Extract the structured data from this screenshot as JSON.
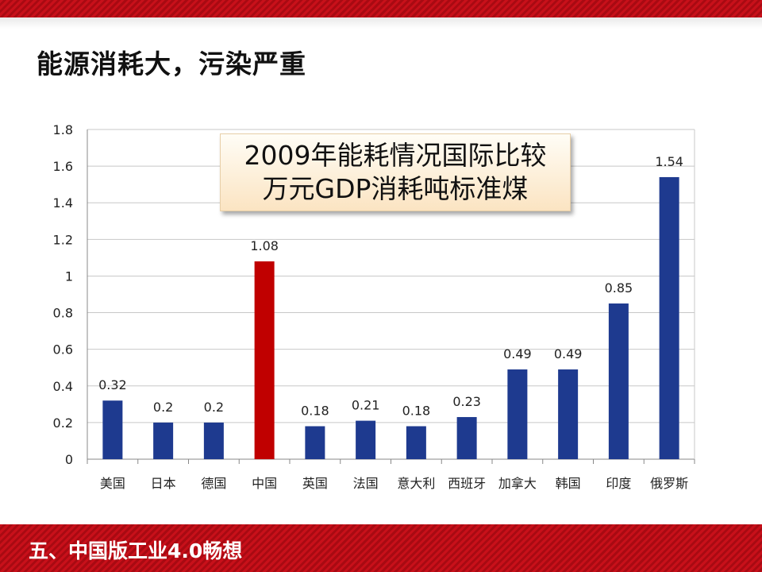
{
  "slide": {
    "title": "能源消耗大，污染严重",
    "footer": "五、中国版工业4.0畅想"
  },
  "colors": {
    "bar_default": "#1e3a8f",
    "bar_highlight": "#c00000",
    "band": "#c8101a"
  },
  "callout": {
    "line1": "2009年能耗情况国际比较",
    "line2": "万元GDP消耗吨标准煤"
  },
  "chart_data": {
    "type": "bar",
    "title": "2009年能耗情况国际比较 万元GDP消耗吨标准煤",
    "categories": [
      "美国",
      "日本",
      "德国",
      "中国",
      "英国",
      "法国",
      "意大利",
      "西班牙",
      "加拿大",
      "韩国",
      "印度",
      "俄罗斯"
    ],
    "values": [
      0.32,
      0.2,
      0.2,
      1.08,
      0.18,
      0.21,
      0.18,
      0.23,
      0.49,
      0.49,
      0.85,
      1.54
    ],
    "value_labels": [
      "0.32",
      "0.2",
      "0.2",
      "1.08",
      "0.18",
      "0.21",
      "0.18",
      "0.23",
      "0.49",
      "0.49",
      "0.85",
      "1.54"
    ],
    "highlight_category": "中国",
    "ylim": [
      0,
      1.8
    ],
    "yticks": [
      0,
      0.2,
      0.4,
      0.6,
      0.8,
      1,
      1.2,
      1.4,
      1.6,
      1.8
    ],
    "ytick_labels": [
      "0",
      "0.2",
      "0.4",
      "0.6",
      "0.8",
      "1",
      "1.2",
      "1.4",
      "1.6",
      "1.8"
    ],
    "xlabel": "",
    "ylabel": "",
    "grid": true,
    "legend": "none"
  }
}
